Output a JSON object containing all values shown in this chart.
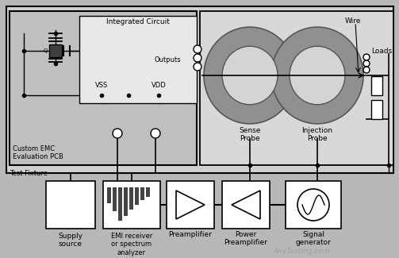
{
  "fig_w": 5.03,
  "fig_h": 3.25,
  "dpi": 100,
  "bg_color": "#b8b8b8",
  "box_bg": "#d0d0d0",
  "pcb_bg": "#c0c0c0",
  "ic_bg": "#e8e8e8",
  "probe_area_bg": "#d8d8d8",
  "white": "#ffffff",
  "dark_gray": "#888888",
  "toroid_outer": "#909090",
  "toroid_inner": "#d4d4d4",
  "watermark": "AnyTesting.com",
  "labels": {
    "test_fixture": "Test Fixture",
    "pcb": "Custom EMC\nEvaluation PCB",
    "ic": "Integrated Circuit",
    "vss": "VSS",
    "vdd": "VDD",
    "outputs": "Outputs",
    "wire": "Wire",
    "loads": "Loads",
    "sense": "Sense\nProbe",
    "injection": "Injection\nProbe",
    "supply": "Supply\nsource",
    "emi": "EMI receiver\nor spectrum\nanalyzer",
    "preamp": "Preamplifier",
    "power": "Power\nPreamplifier",
    "signal": "Signal\ngenerator"
  }
}
